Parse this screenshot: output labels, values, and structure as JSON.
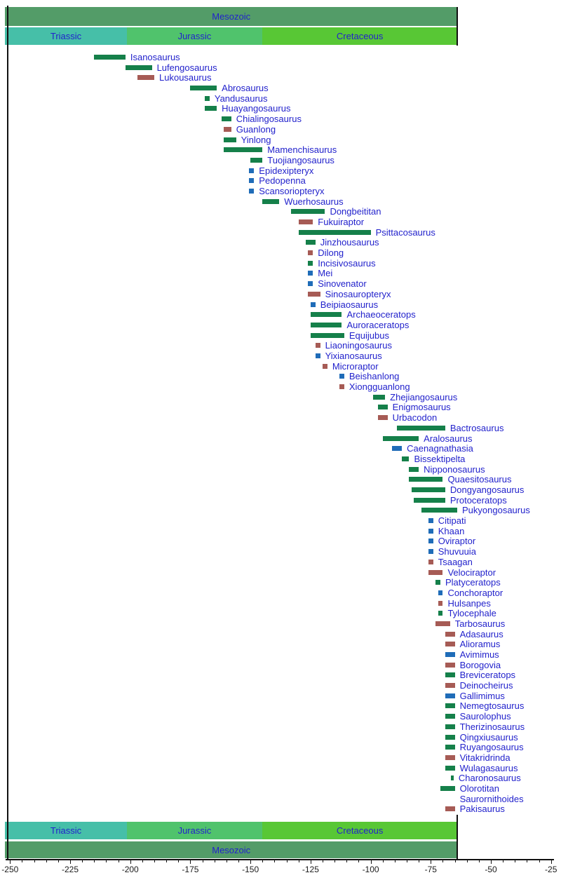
{
  "figure": {
    "kind": "geologic-timeline"
  },
  "colors": {
    "era_band": "#539C68",
    "triassic_band": "#46BFA8",
    "jurassic_band": "#50C36C",
    "cretaceous_band": "#58C735",
    "label_text": "#2222CC",
    "bar_green": "#15804A",
    "bar_red": "#A65B55",
    "bar_blue": "#1F6CB8"
  },
  "chart_data": {
    "type": "timeline",
    "title": "",
    "xlabel": "",
    "axis": {
      "unit": "Ma",
      "xlim": [
        -252,
        -24
      ],
      "major_ticks": [
        -250,
        -225,
        -200,
        -175,
        -150,
        -125,
        -100,
        -75,
        -50,
        -25
      ],
      "minor_tick_step": 5,
      "grid": false
    },
    "era": {
      "name": "Mesozoic",
      "start": -252,
      "end": -64
    },
    "periods": [
      {
        "name": "Triassic",
        "start": -252,
        "end": -201.5,
        "color_key": "triassic_band"
      },
      {
        "name": "Jurassic",
        "start": -201.5,
        "end": -145,
        "color_key": "jurassic_band"
      },
      {
        "name": "Cretaceous",
        "start": -145,
        "end": -64,
        "color_key": "cretaceous_band"
      }
    ],
    "bands_shown": [
      "top",
      "bottom"
    ],
    "taxa": [
      {
        "name": "Isanosaurus",
        "start": -215,
        "end": -202,
        "color": "green"
      },
      {
        "name": "Lufengosaurus",
        "start": -202,
        "end": -191,
        "color": "green"
      },
      {
        "name": "Lukousaurus",
        "start": -197,
        "end": -190,
        "color": "red"
      },
      {
        "name": "Abrosaurus",
        "start": -175,
        "end": -164,
        "color": "green"
      },
      {
        "name": "Yandusaurus",
        "start": -169,
        "end": -167,
        "color": "green"
      },
      {
        "name": "Huayangosaurus",
        "start": -169,
        "end": -164,
        "color": "green"
      },
      {
        "name": "Chialingosaurus",
        "start": -162,
        "end": -158,
        "color": "green"
      },
      {
        "name": "Guanlong",
        "start": -161,
        "end": -158,
        "color": "red"
      },
      {
        "name": "Yinlong",
        "start": -161,
        "end": -156,
        "color": "green"
      },
      {
        "name": "Mamenchisaurus",
        "start": -161,
        "end": -145,
        "color": "green"
      },
      {
        "name": "Tuojiangosaurus",
        "start": -150,
        "end": -145,
        "color": "green"
      },
      {
        "name": "Epidexipteryx",
        "start": -150.5,
        "end": -148.5,
        "color": "blue"
      },
      {
        "name": "Pedopenna",
        "start": -150.5,
        "end": -148.5,
        "color": "blue"
      },
      {
        "name": "Scansoriopteryx",
        "start": -150.5,
        "end": -148.5,
        "color": "blue"
      },
      {
        "name": "Wuerhosaurus",
        "start": -145,
        "end": -138,
        "color": "green"
      },
      {
        "name": "Dongbeititan",
        "start": -133,
        "end": -119,
        "color": "green"
      },
      {
        "name": "Fukuiraptor",
        "start": -130,
        "end": -124,
        "color": "red"
      },
      {
        "name": "Psittacosaurus",
        "start": -130,
        "end": -100,
        "color": "green"
      },
      {
        "name": "Jinzhousaurus",
        "start": -127,
        "end": -123,
        "color": "green"
      },
      {
        "name": "Dilong",
        "start": -126,
        "end": -124,
        "color": "red"
      },
      {
        "name": "Incisivosaurus",
        "start": -126,
        "end": -124,
        "color": "green"
      },
      {
        "name": "Mei",
        "start": -126,
        "end": -124,
        "color": "blue"
      },
      {
        "name": "Sinovenator",
        "start": -126,
        "end": -124,
        "color": "blue"
      },
      {
        "name": "Sinosauropteryx",
        "start": -126,
        "end": -121,
        "color": "red"
      },
      {
        "name": "Beipiaosaurus",
        "start": -125,
        "end": -123,
        "color": "blue"
      },
      {
        "name": "Archaeoceratops",
        "start": -125,
        "end": -112,
        "color": "green"
      },
      {
        "name": "Auroraceratops",
        "start": -125,
        "end": -112,
        "color": "green"
      },
      {
        "name": "Equijubus",
        "start": -125,
        "end": -111,
        "color": "green"
      },
      {
        "name": "Liaoningosaurus",
        "start": -123,
        "end": -121,
        "color": "red"
      },
      {
        "name": "Yixianosaurus",
        "start": -123,
        "end": -121,
        "color": "blue"
      },
      {
        "name": "Microraptor",
        "start": -120,
        "end": -118,
        "color": "red"
      },
      {
        "name": "Beishanlong",
        "start": -113,
        "end": -111,
        "color": "blue"
      },
      {
        "name": "Xiongguanlong",
        "start": -113,
        "end": -111,
        "color": "red"
      },
      {
        "name": "Zhejiangosaurus",
        "start": -99,
        "end": -94,
        "color": "green"
      },
      {
        "name": "Enigmosaurus",
        "start": -97,
        "end": -93,
        "color": "green"
      },
      {
        "name": "Urbacodon",
        "start": -97,
        "end": -93,
        "color": "red"
      },
      {
        "name": "Bactrosaurus",
        "start": -89,
        "end": -69,
        "color": "green"
      },
      {
        "name": "Aralosaurus",
        "start": -95,
        "end": -80,
        "color": "green"
      },
      {
        "name": "Caenagnathasia",
        "start": -91,
        "end": -87,
        "color": "blue"
      },
      {
        "name": "Bissektipelta",
        "start": -87,
        "end": -84,
        "color": "green"
      },
      {
        "name": "Nipponosaurus",
        "start": -84,
        "end": -80,
        "color": "green"
      },
      {
        "name": "Quaesitosaurus",
        "start": -84,
        "end": -70,
        "color": "green"
      },
      {
        "name": "Dongyangosaurus",
        "start": -83,
        "end": -69,
        "color": "green"
      },
      {
        "name": "Protoceratops",
        "start": -82,
        "end": -69,
        "color": "green"
      },
      {
        "name": "Pukyongosaurus",
        "start": -79,
        "end": -64,
        "color": "green"
      },
      {
        "name": "Citipati",
        "start": -76,
        "end": -74,
        "color": "blue"
      },
      {
        "name": "Khaan",
        "start": -76,
        "end": -74,
        "color": "blue"
      },
      {
        "name": "Oviraptor",
        "start": -76,
        "end": -74,
        "color": "blue"
      },
      {
        "name": "Shuvuuia",
        "start": -76,
        "end": -74,
        "color": "blue"
      },
      {
        "name": "Tsaagan",
        "start": -76,
        "end": -74,
        "color": "red"
      },
      {
        "name": "Velociraptor",
        "start": -76,
        "end": -70,
        "color": "red"
      },
      {
        "name": "Platyceratops",
        "start": -73,
        "end": -71,
        "color": "green"
      },
      {
        "name": "Conchoraptor",
        "start": -72,
        "end": -70,
        "color": "blue"
      },
      {
        "name": "Hulsanpes",
        "start": -72,
        "end": -70,
        "color": "red"
      },
      {
        "name": "Tylocephale",
        "start": -72,
        "end": -70,
        "color": "green"
      },
      {
        "name": "Tarbosaurus",
        "start": -73,
        "end": -67,
        "color": "red"
      },
      {
        "name": "Adasaurus",
        "start": -69,
        "end": -65,
        "color": "red"
      },
      {
        "name": "Alioramus",
        "start": -69,
        "end": -65,
        "color": "red"
      },
      {
        "name": "Avimimus",
        "start": -69,
        "end": -65,
        "color": "blue"
      },
      {
        "name": "Borogovia",
        "start": -69,
        "end": -65,
        "color": "red"
      },
      {
        "name": "Breviceratops",
        "start": -69,
        "end": -65,
        "color": "green"
      },
      {
        "name": "Deinocheirus",
        "start": -69,
        "end": -65,
        "color": "red"
      },
      {
        "name": "Gallimimus",
        "start": -69,
        "end": -65,
        "color": "blue"
      },
      {
        "name": "Nemegtosaurus",
        "start": -69,
        "end": -65,
        "color": "green"
      },
      {
        "name": "Saurolophus",
        "start": -69,
        "end": -65,
        "color": "green"
      },
      {
        "name": "Therizinosaurus",
        "start": -69,
        "end": -65,
        "color": "green"
      },
      {
        "name": "Qingxiusaurus",
        "start": -69,
        "end": -65,
        "color": "green"
      },
      {
        "name": "Ruyangosaurus",
        "start": -69,
        "end": -65,
        "color": "green"
      },
      {
        "name": "Vitakridrinda",
        "start": -69,
        "end": -65,
        "color": "red"
      },
      {
        "name": "Wulagasaurus",
        "start": -69,
        "end": -65,
        "color": "green"
      },
      {
        "name": "Charonosaurus",
        "start": -66.5,
        "end": -65.5,
        "color": "green"
      },
      {
        "name": "Olorotitan",
        "start": -71,
        "end": -65,
        "color": "green"
      },
      {
        "name": "Saurornithoides",
        "start": -65,
        "end": -65,
        "color": "none"
      },
      {
        "name": "Pakisaurus",
        "start": -69,
        "end": -65,
        "color": "red"
      }
    ]
  }
}
